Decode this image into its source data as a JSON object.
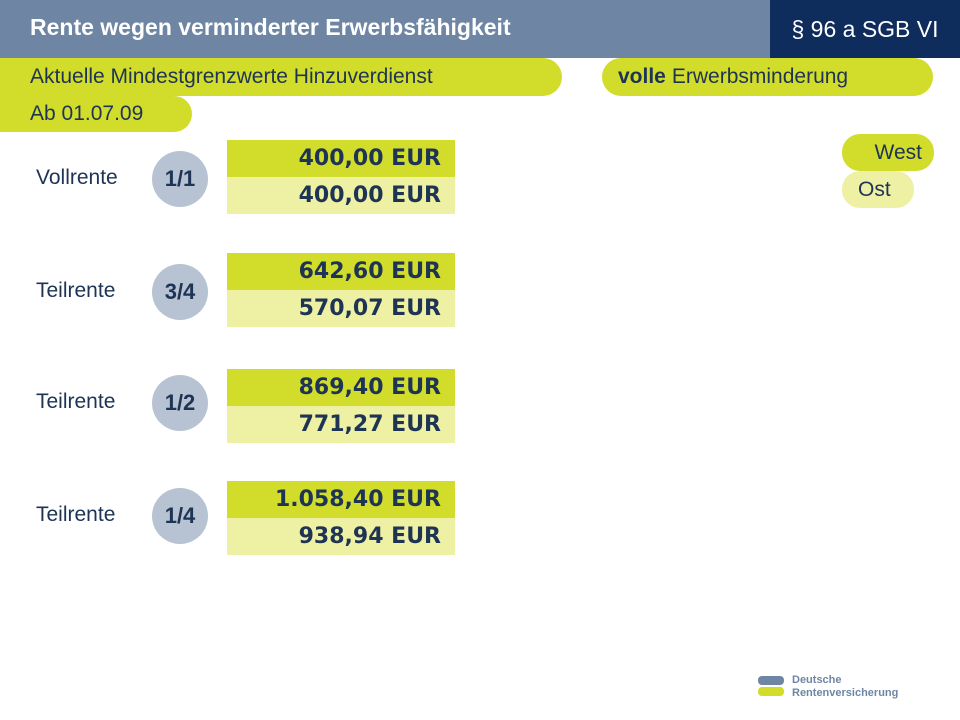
{
  "header": {
    "title": "Rente wegen verminderter Erwerbsfähigkeit",
    "paragraph": "§ 96 a SGB VI"
  },
  "subtitle": "Aktuelle Mindestgrenzwerte Hinzuverdienst",
  "date": "Ab 01.07.09",
  "type": {
    "bold": "volle",
    "rest": "Erwerbsminderung"
  },
  "legend": {
    "west": "West",
    "ost": "Ost"
  },
  "colors": {
    "header_bg": "#6e86a4",
    "paragraph_bg": "#0f2d5c",
    "accent": "#d2dc2a",
    "accent_light": "#eef0a4",
    "circle": "#b7c2d2",
    "text": "#1e3454"
  },
  "rows": [
    {
      "label": "Vollrente",
      "fraction": "1/1",
      "west": "400,00 EUR",
      "ost": "400,00 EUR"
    },
    {
      "label": "Teilrente",
      "fraction": "3/4",
      "west": "642,60 EUR",
      "ost": "570,07 EUR"
    },
    {
      "label": "Teilrente",
      "fraction": "1/2",
      "west": "869,40 EUR",
      "ost": "771,27 EUR"
    },
    {
      "label": "Teilrente",
      "fraction": "1/4",
      "west": "1.058,40 EUR",
      "ost": "938,94 EUR"
    }
  ],
  "logo": {
    "line1": "Deutsche",
    "line2": "Rentenversicherung"
  }
}
